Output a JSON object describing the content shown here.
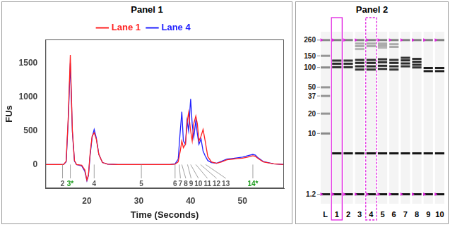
{
  "chart_data": [
    {
      "type": "line",
      "title": "Panel 1",
      "x_label": "Time (Seconds)",
      "y_label": "FUs",
      "x": [
        12,
        14,
        15.5,
        16,
        16.4,
        16.8,
        17.2,
        17.6,
        18,
        19,
        19.6,
        20,
        20.3,
        20.6,
        21,
        21.4,
        21.8,
        22.3,
        23,
        24,
        26,
        30,
        34,
        36,
        37,
        37.6,
        38,
        38.3,
        38.6,
        39,
        39.3,
        39.6,
        40,
        40.3,
        40.6,
        41,
        41.3,
        41.6,
        42,
        42.4,
        42.8,
        43.3,
        44,
        45,
        46,
        47,
        48,
        49,
        50,
        51,
        52,
        52.5,
        53,
        54,
        56,
        58
      ],
      "series": [
        {
          "name": "Lane 1",
          "color": "#ff2020",
          "values": [
            0,
            0,
            0,
            50,
            700,
            1620,
            500,
            60,
            0,
            -10,
            -80,
            -230,
            -150,
            150,
            420,
            470,
            380,
            150,
            30,
            5,
            0,
            0,
            0,
            0,
            5,
            40,
            200,
            350,
            250,
            300,
            600,
            770,
            500,
            350,
            600,
            720,
            600,
            350,
            420,
            520,
            350,
            120,
            40,
            20,
            40,
            70,
            80,
            90,
            95,
            110,
            130,
            120,
            90,
            40,
            10,
            0
          ]
        },
        {
          "name": "Lane 4",
          "color": "#2020ff",
          "values": [
            0,
            0,
            0,
            40,
            650,
            1500,
            480,
            50,
            0,
            -20,
            -100,
            -240,
            -160,
            120,
            400,
            520,
            400,
            150,
            30,
            5,
            0,
            0,
            0,
            0,
            10,
            80,
            500,
            780,
            350,
            300,
            650,
            500,
            970,
            600,
            400,
            650,
            450,
            300,
            380,
            200,
            130,
            60,
            30,
            20,
            50,
            80,
            90,
            100,
            110,
            130,
            150,
            140,
            100,
            45,
            10,
            0
          ]
        }
      ],
      "xlim": [
        12,
        58
      ],
      "xticks": [
        20,
        30,
        40,
        50
      ],
      "ylim": [
        -350,
        1850
      ],
      "yticks": [
        0,
        500,
        1000,
        1500
      ],
      "grid": false,
      "legend": "top",
      "peak_labels": [
        {
          "x": 15.3,
          "label": "2",
          "color": "#555555"
        },
        {
          "x": 16.8,
          "label": "3*",
          "color": "#1a9a1a"
        },
        {
          "x": 21.4,
          "label": "4",
          "color": "#555555"
        },
        {
          "x": 30.5,
          "label": "5",
          "color": "#555555"
        },
        {
          "x": 37.0,
          "label": "6",
          "color": "#555555"
        },
        {
          "x": 37.8,
          "label": "7",
          "color": "#555555"
        },
        {
          "x": 38.3,
          "label": "8",
          "color": "#555555"
        },
        {
          "x": 39.4,
          "label": "9",
          "color": "#555555"
        },
        {
          "x": 40.0,
          "label": "10",
          "color": "#555555"
        },
        {
          "x": 41.0,
          "label": "11",
          "color": "#555555"
        },
        {
          "x": 41.9,
          "label": "12",
          "color": "#555555"
        },
        {
          "x": 42.9,
          "label": "13",
          "color": "#555555"
        },
        {
          "x": 52.0,
          "label": "14*",
          "color": "#1a9a1a"
        }
      ]
    },
    {
      "type": "gel",
      "title": "Panel 2",
      "log": "y",
      "ylim": [
        1,
        300
      ],
      "yticks": [
        260,
        150,
        100,
        50,
        37,
        20,
        10,
        1.2
      ],
      "marker_bands": [
        260,
        1.2
      ],
      "color": "#e020e0",
      "highlighted_lanes": [
        {
          "name": "1",
          "line_style": "solid"
        },
        {
          "name": "4",
          "line_style": "dashed"
        }
      ],
      "lanes": [
        {
          "name": "L",
          "bands": [
            {
              "size": 260,
              "intensity": 0.45
            },
            {
              "size": 150,
              "intensity": 0.4
            },
            {
              "size": 100,
              "intensity": 0.45
            },
            {
              "size": 50,
              "intensity": 0.4
            },
            {
              "size": 37,
              "intensity": 0.4
            },
            {
              "size": 20,
              "intensity": 0.4
            },
            {
              "size": 10,
              "intensity": 0.45
            },
            {
              "size": 1.2,
              "intensity": 0.95
            }
          ]
        },
        {
          "name": "1",
          "bands": [
            {
              "size": 260,
              "intensity": 0.5
            },
            {
              "size": 127,
              "intensity": 0.85
            },
            {
              "size": 114,
              "intensity": 0.9
            },
            {
              "size": 101,
              "intensity": 0.9
            },
            {
              "size": 5,
              "intensity": 1
            },
            {
              "size": 1.2,
              "intensity": 1
            }
          ]
        },
        {
          "name": "2",
          "bands": [
            {
              "size": 260,
              "intensity": 0.5
            },
            {
              "size": 127,
              "intensity": 0.85
            },
            {
              "size": 114,
              "intensity": 0.9
            },
            {
              "size": 101,
              "intensity": 0.9
            },
            {
              "size": 5,
              "intensity": 1
            },
            {
              "size": 1.2,
              "intensity": 1
            }
          ]
        },
        {
          "name": "3",
          "bands": [
            {
              "size": 260,
              "intensity": 0.5
            },
            {
              "size": 230,
              "intensity": 0.3
            },
            {
              "size": 210,
              "intensity": 0.3
            },
            {
              "size": 190,
              "intensity": 0.25
            },
            {
              "size": 130,
              "intensity": 0.85
            },
            {
              "size": 117,
              "intensity": 0.9
            },
            {
              "size": 104,
              "intensity": 0.9
            },
            {
              "size": 93,
              "intensity": 0.85
            },
            {
              "size": 5,
              "intensity": 1
            },
            {
              "size": 1.2,
              "intensity": 1
            }
          ]
        },
        {
          "name": "4",
          "bands": [
            {
              "size": 260,
              "intensity": 0.5
            },
            {
              "size": 230,
              "intensity": 0.3
            },
            {
              "size": 210,
              "intensity": 0.3
            },
            {
              "size": 130,
              "intensity": 0.85
            },
            {
              "size": 117,
              "intensity": 0.9
            },
            {
              "size": 104,
              "intensity": 0.9
            },
            {
              "size": 93,
              "intensity": 0.85
            },
            {
              "size": 5,
              "intensity": 1
            },
            {
              "size": 1.2,
              "intensity": 1
            }
          ]
        },
        {
          "name": "5",
          "bands": [
            {
              "size": 260,
              "intensity": 0.5
            },
            {
              "size": 230,
              "intensity": 0.3
            },
            {
              "size": 215,
              "intensity": 0.3
            },
            {
              "size": 200,
              "intensity": 0.25
            },
            {
              "size": 133,
              "intensity": 0.85
            },
            {
              "size": 120,
              "intensity": 0.9
            },
            {
              "size": 106,
              "intensity": 0.9
            },
            {
              "size": 95,
              "intensity": 0.85
            },
            {
              "size": 5,
              "intensity": 1
            },
            {
              "size": 1.2,
              "intensity": 1
            }
          ]
        },
        {
          "name": "6",
          "bands": [
            {
              "size": 260,
              "intensity": 0.5
            },
            {
              "size": 225,
              "intensity": 0.3
            },
            {
              "size": 205,
              "intensity": 0.3
            },
            {
              "size": 130,
              "intensity": 0.85
            },
            {
              "size": 117,
              "intensity": 0.9
            },
            {
              "size": 104,
              "intensity": 0.9
            },
            {
              "size": 93,
              "intensity": 0.85
            },
            {
              "size": 5,
              "intensity": 1
            },
            {
              "size": 1.2,
              "intensity": 1
            }
          ]
        },
        {
          "name": "7",
          "bands": [
            {
              "size": 260,
              "intensity": 0.5
            },
            {
              "size": 140,
              "intensity": 0.85
            },
            {
              "size": 128,
              "intensity": 0.9
            },
            {
              "size": 115,
              "intensity": 0.9
            },
            {
              "size": 104,
              "intensity": 0.85
            },
            {
              "size": 5,
              "intensity": 1
            },
            {
              "size": 1.2,
              "intensity": 1
            }
          ]
        },
        {
          "name": "8",
          "bands": [
            {
              "size": 260,
              "intensity": 0.5
            },
            {
              "size": 135,
              "intensity": 0.85
            },
            {
              "size": 122,
              "intensity": 0.9
            },
            {
              "size": 110,
              "intensity": 0.9
            },
            {
              "size": 100,
              "intensity": 0.85
            },
            {
              "size": 5,
              "intensity": 1
            },
            {
              "size": 1.2,
              "intensity": 1
            }
          ]
        },
        {
          "name": "9",
          "bands": [
            {
              "size": 260,
              "intensity": 0.5
            },
            {
              "size": 98,
              "intensity": 0.95
            },
            {
              "size": 88,
              "intensity": 0.95
            },
            {
              "size": 5,
              "intensity": 1
            },
            {
              "size": 1.2,
              "intensity": 1
            }
          ]
        },
        {
          "name": "10",
          "bands": [
            {
              "size": 260,
              "intensity": 0.5
            },
            {
              "size": 98,
              "intensity": 0.95
            },
            {
              "size": 88,
              "intensity": 0.95
            },
            {
              "size": 5,
              "intensity": 1
            },
            {
              "size": 1.2,
              "intensity": 1
            }
          ]
        }
      ]
    }
  ]
}
